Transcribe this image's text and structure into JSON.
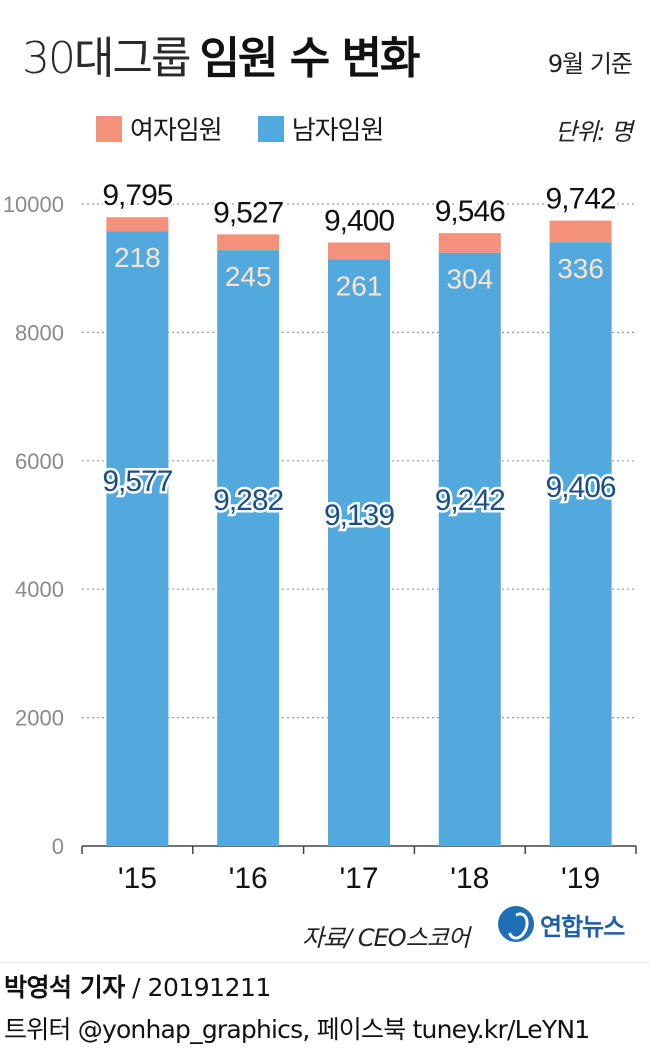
{
  "header": {
    "title_light": "30대그룹",
    "title_bold": "임원 수 변화",
    "basis": "9월 기준",
    "unit": "단위: 명"
  },
  "legend": [
    {
      "label": "여자임원",
      "color": "#f4917a"
    },
    {
      "label": "남자임원",
      "color": "#52a9de"
    }
  ],
  "chart_data": {
    "type": "bar",
    "stacked": true,
    "categories": [
      "'15",
      "'16",
      "'17",
      "'18",
      "'19"
    ],
    "series": [
      {
        "name": "남자임원",
        "color": "#52a9de",
        "values": [
          9577,
          9282,
          9139,
          9242,
          9406
        ]
      },
      {
        "name": "여자임원",
        "color": "#f4917a",
        "values": [
          218,
          245,
          261,
          304,
          336
        ]
      }
    ],
    "totals": [
      "9,795",
      "9,527",
      "9,400",
      "9,546",
      "9,742"
    ],
    "male_labels": [
      "9,577",
      "9,282",
      "9,139",
      "9,242",
      "9,406"
    ],
    "female_labels": [
      "218",
      "245",
      "261",
      "304",
      "336"
    ],
    "y_ticks": [
      "0",
      "2000",
      "4000",
      "6000",
      "8000",
      "10000"
    ],
    "ylim": [
      0,
      10000
    ],
    "grid": true,
    "label_colors": {
      "male": "#1c4f87",
      "female": "#fbe3cd",
      "total": "#111111",
      "axis": "#8a8a8a"
    }
  },
  "footer": {
    "source": "자료/ CEO스코어",
    "logo_text": "연합뉴스",
    "reporter": "박영석 기자",
    "date": "/ 20191211",
    "contact": "트위터 @yonhap_graphics, 페이스북 tuney.kr/LeYN1"
  }
}
